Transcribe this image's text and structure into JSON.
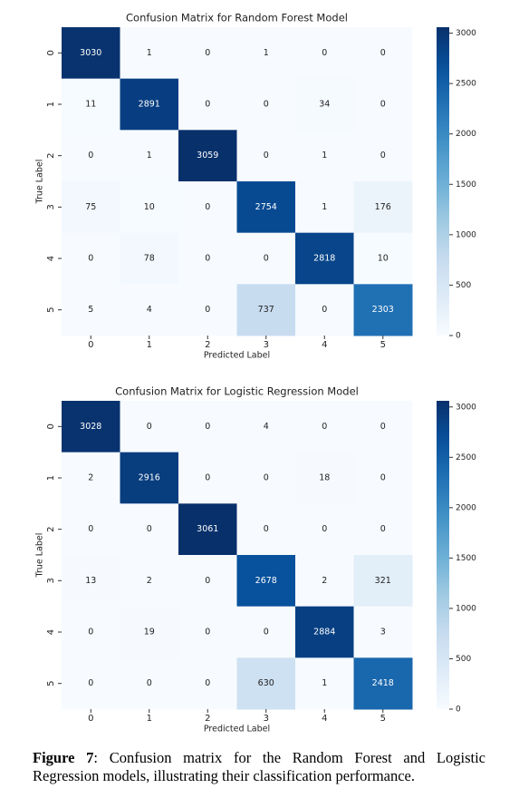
{
  "chart_data": [
    {
      "type": "heatmap",
      "title": "Confusion Matrix for Random Forest Model",
      "x_label": "Predicted Label",
      "y_label": "True Label",
      "x_categories": [
        "0",
        "1",
        "2",
        "3",
        "4",
        "5"
      ],
      "y_categories": [
        "0",
        "1",
        "2",
        "3",
        "4",
        "5"
      ],
      "values": [
        [
          3030,
          1,
          0,
          1,
          0,
          0
        ],
        [
          11,
          2891,
          0,
          0,
          34,
          0
        ],
        [
          0,
          1,
          3059,
          0,
          1,
          0
        ],
        [
          75,
          10,
          0,
          2754,
          1,
          176
        ],
        [
          0,
          78,
          0,
          0,
          2818,
          10
        ],
        [
          5,
          4,
          0,
          737,
          0,
          2303
        ]
      ],
      "colormap": "Blues",
      "zlim": [
        0,
        3059
      ],
      "zticks": [
        0,
        500,
        1000,
        1500,
        2000,
        2500,
        3000
      ]
    },
    {
      "type": "heatmap",
      "title": "Confusion Matrix for Logistic Regression Model",
      "x_label": "Predicted Label",
      "y_label": "True Label",
      "x_categories": [
        "0",
        "1",
        "2",
        "3",
        "4",
        "5"
      ],
      "y_categories": [
        "0",
        "1",
        "2",
        "3",
        "4",
        "5"
      ],
      "values": [
        [
          3028,
          0,
          0,
          4,
          0,
          0
        ],
        [
          2,
          2916,
          0,
          0,
          18,
          0
        ],
        [
          0,
          0,
          3061,
          0,
          0,
          0
        ],
        [
          13,
          2,
          0,
          2678,
          2,
          321
        ],
        [
          0,
          19,
          0,
          0,
          2884,
          3
        ],
        [
          0,
          0,
          0,
          630,
          1,
          2418
        ]
      ],
      "colormap": "Blues",
      "zlim": [
        0,
        3061
      ],
      "zticks": [
        0,
        500,
        1000,
        1500,
        2000,
        2500,
        3000
      ]
    }
  ],
  "caption": {
    "label": "Figure 7",
    "text": ": Confusion matrix for the Random Forest and Logistic Regression models, illustrating their classification performance."
  }
}
